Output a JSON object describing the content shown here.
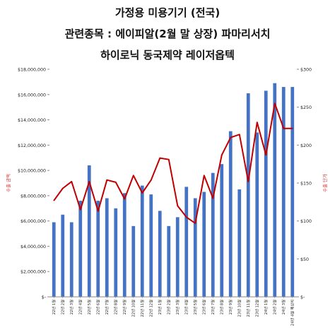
{
  "title_lines": [
    "가정용 미용기기 (전국)",
    "관련종목 : 에이피알(2월 말 상장) 파마리서치",
    "하이로닉 동국제약 레이저옵텍"
  ],
  "colors": {
    "bar": "#4472C4",
    "line": "#C00000",
    "axis_label": "#E03030",
    "text": "#222222",
    "grid": "#D9D9D9"
  },
  "chart_data": {
    "type": "bar+line",
    "title": "가정용 미용기기 (전국)",
    "ylabel": "수출 금액",
    "y2label": "수출 단가",
    "ylim": [
      0,
      18000000
    ],
    "y2lim": [
      0,
      300
    ],
    "yticks": [
      "$18,000,000",
      "$16,000,000",
      "$14,000,000",
      "$12,000,000",
      "$10,000,000",
      "$8,000,000",
      "$6,000,000",
      "$4,000,000",
      "$2,000,000",
      "$-"
    ],
    "y2ticks": [
      "$300",
      "$250",
      "$200",
      "$150",
      "$100",
      "$50",
      "$-"
    ],
    "categories": [
      "22년 1월",
      "22년 2월",
      "22년 3월",
      "22년 4월",
      "22년 5월",
      "22년 6월",
      "22년 7월",
      "22년 8월",
      "22년 9월",
      "22년 10월",
      "22년 11월",
      "22년 12월",
      "23년 1월",
      "23년 2월",
      "23년 3월",
      "23년 4월",
      "23년 5월",
      "23년 6월",
      "23년 7월",
      "23년 8월",
      "23년 9월",
      "23년 10월",
      "23년 11월",
      "23년 12월",
      "24년 1월",
      "24년 2월",
      "24년 3월",
      "24년 4월 예상치"
    ],
    "series": [
      {
        "name": "수출 금액",
        "kind": "bar",
        "axis": "left",
        "values": [
          5900000,
          6500000,
          5900000,
          7600000,
          10400000,
          7600000,
          7800000,
          7000000,
          8200000,
          5600000,
          8800000,
          8100000,
          6800000,
          5600000,
          6300000,
          8700000,
          7800000,
          8300000,
          9800000,
          10500000,
          13100000,
          8500000,
          16100000,
          13000000,
          16300000,
          16900000,
          16600000,
          16600000
        ]
      },
      {
        "name": "수출 단가",
        "kind": "line",
        "axis": "right",
        "values": [
          127,
          143,
          152,
          115,
          152,
          113,
          154,
          151,
          129,
          160,
          137,
          154,
          183,
          181,
          120,
          105,
          97,
          160,
          130,
          187,
          210,
          214,
          152,
          230,
          187,
          255,
          222,
          222
        ]
      }
    ]
  }
}
